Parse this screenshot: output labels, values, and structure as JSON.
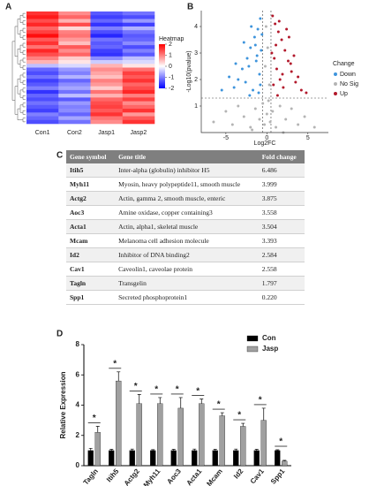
{
  "panel_labels": [
    "A",
    "B",
    "C",
    "D"
  ],
  "chart_data": [
    {
      "type": "heatmap",
      "columns": [
        "Con1",
        "Con2",
        "Jasp1",
        "Jasp2"
      ],
      "colorbar_title": "Heatmap",
      "zlim": [
        -2,
        2
      ],
      "colorbar_ticks": [
        2,
        1,
        0,
        -1,
        -2
      ],
      "low_color": "#0000ff",
      "mid_color": "#ffffff",
      "high_color": "#ff0000",
      "values": [
        [
          1.6,
          0.9,
          -1.3,
          -1.1
        ],
        [
          1.8,
          1.2,
          -1.5,
          -1.4
        ],
        [
          1.4,
          0.6,
          -1.2,
          -0.8
        ],
        [
          1.7,
          1.4,
          -1.6,
          -1.5
        ],
        [
          1.2,
          0.3,
          -1.0,
          -0.6
        ],
        [
          1.5,
          1.0,
          -1.4,
          -1.1
        ],
        [
          1.9,
          1.1,
          -1.7,
          -1.3
        ],
        [
          1.3,
          0.8,
          -1.1,
          -1.2
        ],
        [
          1.6,
          0.5,
          -1.3,
          -0.9
        ],
        [
          1.1,
          1.3,
          -1.2,
          -1.4
        ],
        [
          1.7,
          0.9,
          -1.5,
          -1.0
        ],
        [
          1.4,
          1.2,
          -1.6,
          -1.3
        ],
        [
          1.0,
          0.4,
          -0.9,
          -0.5
        ],
        [
          0.6,
          0.2,
          -0.4,
          -0.3
        ],
        [
          -0.5,
          -0.3,
          0.6,
          0.2
        ],
        [
          -1.2,
          -0.8,
          0.9,
          1.1
        ],
        [
          -1.4,
          -1.0,
          0.7,
          1.5
        ],
        [
          -1.1,
          -0.6,
          0.5,
          1.3
        ],
        [
          -1.5,
          -1.2,
          1.0,
          1.6
        ],
        [
          -1.3,
          -0.9,
          0.8,
          1.2
        ],
        [
          -1.0,
          -0.7,
          0.4,
          1.4
        ],
        [
          -1.6,
          -1.1,
          1.1,
          1.7
        ],
        [
          -1.2,
          -0.5,
          0.6,
          1.0
        ],
        [
          -1.4,
          -1.3,
          1.2,
          1.5
        ],
        [
          -1.1,
          -0.8,
          1.4,
          0.9
        ],
        [
          -1.3,
          -1.0,
          1.5,
          1.2
        ],
        [
          -1.5,
          -0.9,
          1.3,
          1.6
        ],
        [
          -1.0,
          -1.2,
          1.6,
          0.8
        ],
        [
          -1.2,
          -0.7,
          1.1,
          1.3
        ],
        [
          -1.4,
          -1.1,
          0.9,
          1.6
        ]
      ]
    },
    {
      "type": "scatter",
      "xlabel": "Log2FC",
      "ylabel": "-Log10(pvalue)",
      "xlim": [
        -8,
        7.5
      ],
      "ylim": [
        0,
        4.6
      ],
      "xticks": [
        -5,
        0,
        5
      ],
      "yticks": [
        1,
        2,
        3,
        4
      ],
      "legend_title": "Change",
      "vlines": [
        -0.5,
        0.5
      ],
      "hline": 1.3,
      "series": [
        {
          "name": "Down",
          "color": "#3e94dc",
          "x": [
            -0.8,
            -1.1,
            -1.5,
            -2.0,
            -2.4,
            -3.0,
            -3.5,
            -4.0,
            -1.2,
            -0.9,
            -1.7,
            -2.2,
            -2.8,
            -0.7,
            -1.0,
            -1.4,
            -5.5,
            -3.8,
            -2.6,
            -1.9,
            -0.8,
            -1.3,
            -0.6,
            -4.6,
            -2.1
          ],
          "values": [
            4.3,
            3.9,
            3.6,
            3.2,
            2.8,
            2.4,
            2.0,
            1.7,
            2.9,
            2.2,
            1.6,
            2.5,
            3.4,
            3.1,
            1.5,
            3.3,
            1.6,
            2.6,
            1.9,
            4.0,
            1.8,
            2.7,
            3.7,
            2.1,
            1.4
          ]
        },
        {
          "name": "No Sig",
          "color": "#b4b4b4",
          "x": [
            -6.5,
            -5.0,
            -4.2,
            -3.5,
            -2.8,
            -2.0,
            -1.4,
            -0.9,
            -0.5,
            -0.3,
            0.0,
            0.2,
            0.4,
            0.7,
            1.1,
            1.6,
            2.3,
            3.0,
            3.8,
            4.6,
            5.8,
            -0.2,
            0.1,
            -1.8,
            2.0,
            0.3,
            -0.1
          ],
          "values": [
            0.4,
            0.8,
            0.3,
            1.0,
            0.6,
            0.2,
            0.9,
            0.5,
            1.1,
            0.3,
            0.7,
            1.2,
            0.4,
            0.8,
            0.2,
            1.0,
            0.5,
            0.9,
            0.3,
            0.6,
            0.2,
            2.5,
            3.2,
            0.1,
            0.0,
            1.8,
            4.0
          ]
        },
        {
          "name": "Up",
          "color": "#b2182b",
          "x": [
            0.7,
            1.0,
            1.4,
            1.8,
            2.2,
            2.6,
            3.0,
            3.5,
            4.2,
            0.9,
            1.2,
            1.6,
            2.0,
            2.4,
            2.9,
            0.8,
            1.1,
            1.5,
            3.3,
            4.8,
            0.6,
            1.9,
            2.7,
            1.3,
            3.8
          ],
          "values": [
            4.4,
            4.1,
            3.8,
            3.5,
            3.1,
            2.7,
            2.3,
            1.9,
            1.6,
            2.8,
            2.4,
            2.0,
            1.7,
            3.9,
            2.6,
            1.8,
            3.3,
            4.2,
            2.9,
            1.5,
            3.0,
            2.2,
            3.6,
            1.4,
            2.1
          ]
        }
      ]
    },
    {
      "type": "bar",
      "ylabel": "Relative Expression",
      "ylim": [
        0,
        8
      ],
      "yticks": [
        0,
        2,
        4,
        6,
        8
      ],
      "categories": [
        "Tagln",
        "Itih5",
        "Actg2",
        "Myh11",
        "Aoc3",
        "Acta1",
        "Mcam",
        "Id2",
        "Cav1",
        "Spp1"
      ],
      "series": [
        {
          "name": "Con",
          "color": "#000000",
          "values": [
            1,
            1,
            1,
            1,
            1,
            1,
            1,
            1,
            1,
            1
          ],
          "errors": [
            0.15,
            0.08,
            0.1,
            0.06,
            0.08,
            0.1,
            0.08,
            0.1,
            0.08,
            0.05
          ]
        },
        {
          "name": "Jasp",
          "color": "#a0a0a0",
          "values": [
            2.2,
            5.6,
            4.1,
            4.1,
            3.8,
            4.1,
            3.3,
            2.6,
            3.0,
            0.3
          ],
          "errors": [
            0.4,
            0.6,
            0.6,
            0.4,
            0.7,
            0.3,
            0.2,
            0.2,
            0.8,
            0.05
          ]
        }
      ],
      "significance": [
        "*",
        "*",
        "*",
        "*",
        "*",
        "*",
        "*",
        "*",
        "*",
        "*"
      ]
    }
  ],
  "table": {
    "header": [
      "Gene symbol",
      "Gene title",
      "Fold change"
    ],
    "rows": [
      [
        "Itih5",
        "Inter-alpha (globulin) inhibitor H5",
        "6.486"
      ],
      [
        "Myh11",
        "Myosin, heavy polypeptide11, smooth muscle",
        "3.999"
      ],
      [
        "Actg2",
        "Actin, gamma 2, smooth muscle, enteric",
        "3.875"
      ],
      [
        "Aoc3",
        "Amine oxidase, copper containing3",
        "3.558"
      ],
      [
        "Acta1",
        "Actin, alpha1, skeletal muscle",
        "3.504"
      ],
      [
        "Mcam",
        "Melanoma cell adhesion molecule",
        "3.393"
      ],
      [
        "Id2",
        "Inhibitor of DNA binding2",
        "2.584"
      ],
      [
        "Cav1",
        "Caveolin1, caveolae protein",
        "2.558"
      ],
      [
        "Tagln",
        "Transgelin",
        "1.797"
      ],
      [
        "Spp1",
        "Secreted phosphoprotein1",
        "0.220"
      ]
    ]
  }
}
